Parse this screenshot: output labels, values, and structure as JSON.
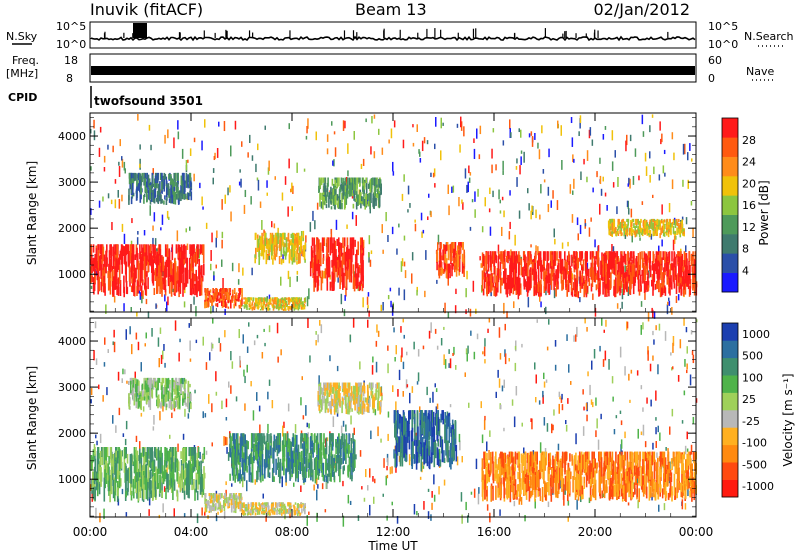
{
  "header": {
    "station": "Inuvik (fitACF)",
    "beam": "Beam 13",
    "date": "02/Jan/2012"
  },
  "summary_panels": {
    "nsky_label": "N.Sky",
    "nsearch_label": "N.Search",
    "noise_ticks": [
      "10^5",
      "10^0"
    ],
    "freq_label": "Freq.",
    "freq_unit": "[MHz]",
    "freq_ticks": [
      "18",
      "8"
    ],
    "nave_label": "Nave",
    "nave_ticks": [
      "60",
      "0"
    ],
    "cpid_label": "CPID",
    "cpid_value": "twofsound 3501"
  },
  "colors": {
    "power": [
      "#1a1aff",
      "#2b4fa8",
      "#3f7a6e",
      "#4e9a5a",
      "#8cc63f",
      "#f0c20a",
      "#ff8c1a",
      "#ff5a10",
      "#ff1a1a"
    ],
    "velocity": [
      "#1c3fb0",
      "#2c6fa0",
      "#3f8f6e",
      "#4fb34a",
      "#9fd05a",
      "#b8b8b8",
      "#ffb020",
      "#ff8a10",
      "#ff4a10",
      "#ff1a10"
    ]
  },
  "chart_data": [
    {
      "type": "heatmap",
      "panel": "power",
      "ylabel": "Slant Range [km]",
      "yticks": [
        "1000",
        "2000",
        "3000",
        "4000"
      ],
      "ylim": [
        180,
        4500
      ],
      "colorbar_label": "Power [dB]",
      "colorbar_ticks": [
        "4",
        "8",
        "12",
        "16",
        "20",
        "24",
        "28"
      ],
      "clim": [
        0,
        30
      ],
      "regions": [
        {
          "t": [
            0,
            4.5
          ],
          "r": [
            500,
            1650
          ],
          "level": 8
        },
        {
          "t": [
            4.5,
            6.0
          ],
          "r": [
            250,
            700
          ],
          "level": 7
        },
        {
          "t": [
            6.0,
            8.5
          ],
          "r": [
            200,
            500
          ],
          "level": 5
        },
        {
          "t": [
            6.5,
            8.5
          ],
          "r": [
            1200,
            1900
          ],
          "level": 5
        },
        {
          "t": [
            8.7,
            10.8
          ],
          "r": [
            600,
            1800
          ],
          "level": 8
        },
        {
          "t": [
            13.7,
            14.8
          ],
          "r": [
            900,
            1700
          ],
          "level": 7
        },
        {
          "t": [
            15.5,
            24
          ],
          "r": [
            500,
            1500
          ],
          "level": 8
        },
        {
          "t": [
            20.5,
            23.5
          ],
          "r": [
            1800,
            2200
          ],
          "level": 5
        },
        {
          "t": [
            1.5,
            4.0
          ],
          "r": [
            2500,
            3200
          ],
          "level": 2
        },
        {
          "t": [
            9.0,
            11.5
          ],
          "r": [
            2400,
            3100
          ],
          "level": 3
        }
      ]
    },
    {
      "type": "heatmap",
      "panel": "velocity",
      "ylabel": "Slant Range [km]",
      "yticks": [
        "1000",
        "2000",
        "3000",
        "4000"
      ],
      "ylim": [
        180,
        4500
      ],
      "xlabel": "Time UT",
      "xticks": [
        "00:00",
        "04:00",
        "08:00",
        "12:00",
        "16:00",
        "20:00",
        "00:00"
      ],
      "xlim": [
        0,
        24
      ],
      "colorbar_label": "Velocity [m s⁻¹]",
      "colorbar_ticks": [
        "1000",
        "500",
        "100",
        "25",
        "-25",
        "-100",
        "-500",
        "-1000"
      ],
      "clim": [
        -1000,
        1000
      ],
      "regions": [
        {
          "t": [
            0,
            4.5
          ],
          "r": [
            500,
            1700
          ],
          "level": 3
        },
        {
          "t": [
            4.5,
            6.0
          ],
          "r": [
            250,
            700
          ],
          "level": 5
        },
        {
          "t": [
            6.0,
            8.5
          ],
          "r": [
            200,
            500
          ],
          "level": 5
        },
        {
          "t": [
            5.5,
            10.5
          ],
          "r": [
            900,
            2000
          ],
          "level": 2
        },
        {
          "t": [
            12.0,
            14.5
          ],
          "r": [
            1200,
            2500
          ],
          "level": 1
        },
        {
          "t": [
            15.5,
            24
          ],
          "r": [
            500,
            1600
          ],
          "level": 7
        },
        {
          "t": [
            1.5,
            4.0
          ],
          "r": [
            2500,
            3200
          ],
          "level": 4
        },
        {
          "t": [
            9.0,
            11.5
          ],
          "r": [
            2400,
            3100
          ],
          "level": 5
        }
      ]
    }
  ]
}
